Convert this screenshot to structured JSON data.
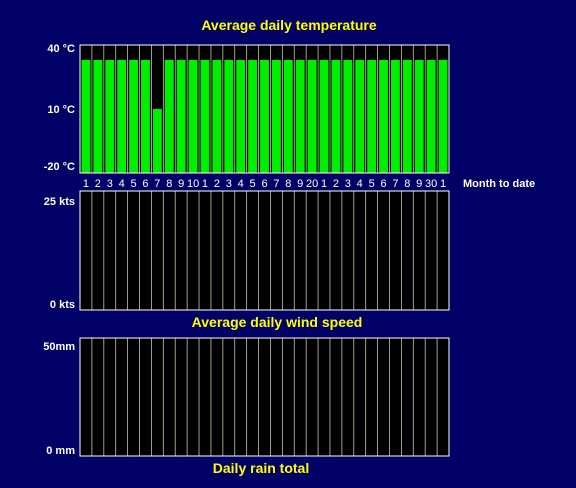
{
  "colors": {
    "background": "#000066",
    "plot_bg": "#000000",
    "frame": "#ffffff",
    "temp_bar": "#00ee00",
    "title": "#ffff00",
    "gridline": "#c8c8a0"
  },
  "side_label": "Month to date",
  "chart_data": [
    {
      "type": "bar",
      "title": "Average daily temperature",
      "ytick_labels": [
        "40 °C",
        "10 °C",
        "-20 °C"
      ],
      "ylim": [
        -20,
        40
      ],
      "categories": [
        "1",
        "2",
        "3",
        "4",
        "5",
        "6",
        "7",
        "8",
        "9",
        "10",
        "1",
        "2",
        "3",
        "4",
        "5",
        "6",
        "7",
        "8",
        "9",
        "20",
        "1",
        "2",
        "3",
        "4",
        "5",
        "6",
        "7",
        "8",
        "9",
        "30",
        "1"
      ],
      "values": [
        33,
        33,
        33,
        33,
        33,
        33,
        10,
        33,
        33,
        33,
        33,
        33,
        33,
        33,
        33,
        33,
        33,
        33,
        33,
        33,
        33,
        33,
        33,
        33,
        33,
        33,
        33,
        33,
        33,
        33,
        33
      ]
    },
    {
      "type": "bar",
      "title": "Average daily wind speed",
      "ytick_labels": [
        "25 kts",
        "0 kts"
      ],
      "ylim": [
        0,
        25
      ],
      "categories": [
        "1",
        "2",
        "3",
        "4",
        "5",
        "6",
        "7",
        "8",
        "9",
        "10",
        "1",
        "2",
        "3",
        "4",
        "5",
        "6",
        "7",
        "8",
        "9",
        "20",
        "1",
        "2",
        "3",
        "4",
        "5",
        "6",
        "7",
        "8",
        "9",
        "30",
        "1"
      ],
      "values": [
        0,
        0,
        0,
        0,
        0,
        0,
        0,
        0,
        0,
        0,
        0,
        0,
        0,
        0,
        0,
        0,
        0,
        0,
        0,
        0,
        0,
        0,
        0,
        0,
        0,
        0,
        0,
        0,
        0,
        0,
        0
      ]
    },
    {
      "type": "bar",
      "title": "Daily rain total",
      "ytick_labels": [
        "50mm",
        "0 mm"
      ],
      "ylim": [
        0,
        50
      ],
      "categories": [
        "1",
        "2",
        "3",
        "4",
        "5",
        "6",
        "7",
        "8",
        "9",
        "10",
        "1",
        "2",
        "3",
        "4",
        "5",
        "6",
        "7",
        "8",
        "9",
        "20",
        "1",
        "2",
        "3",
        "4",
        "5",
        "6",
        "7",
        "8",
        "9",
        "30",
        "1"
      ],
      "values": [
        0,
        0,
        0,
        0,
        0,
        0,
        0,
        0,
        0,
        0,
        0,
        0,
        0,
        0,
        0,
        0,
        0,
        0,
        0,
        0,
        0,
        0,
        0,
        0,
        0,
        0,
        0,
        0,
        0,
        0,
        0
      ]
    }
  ]
}
